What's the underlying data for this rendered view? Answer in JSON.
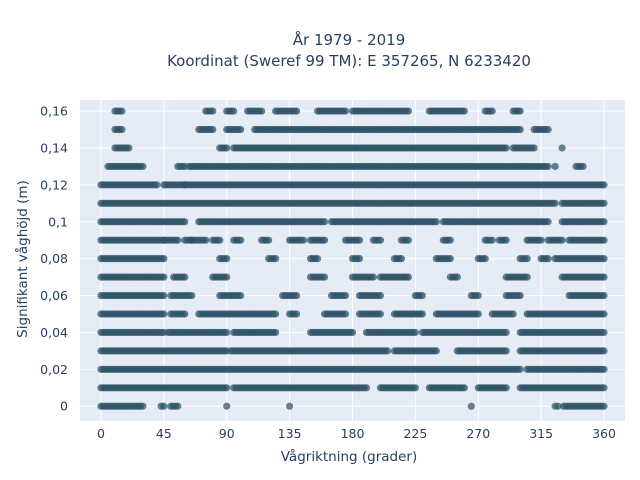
{
  "chart_data": {
    "type": "scatter",
    "title_line1": "År 1979 - 2019",
    "title_line2": "Koordinat (Sweref 99 TM): E 357265, N 6233420",
    "xlabel": "Vågriktning (grader)",
    "ylabel": "Signifikant våghöjd (m)",
    "xlim": [
      -15,
      375
    ],
    "ylim": [
      -0.008,
      0.166
    ],
    "x_ticks": [
      0,
      45,
      90,
      135,
      180,
      225,
      270,
      315,
      360
    ],
    "x_tick_labels": [
      "0",
      "45",
      "90",
      "135",
      "180",
      "225",
      "270",
      "315",
      "360"
    ],
    "y_ticks": [
      0,
      0.02,
      0.04,
      0.06,
      0.08,
      0.1,
      0.12,
      0.14,
      0.16
    ],
    "y_tick_labels": [
      "0",
      "0,02",
      "0,04",
      "0,06",
      "0,08",
      "0,1",
      "0,12",
      "0,14",
      "0,16"
    ],
    "grid": true,
    "plot_bg": "#e5ecf6",
    "marker_color": "#2e5266",
    "series": [
      {
        "bands": [
          {
            "y": 0.0,
            "x_ranges": [
              [
                0,
                30
              ],
              [
                43,
                45
              ],
              [
                50,
                55
              ],
              [
                90,
                90
              ],
              [
                135,
                135
              ],
              [
                265,
                265
              ],
              [
                325,
                327
              ],
              [
                331,
                360
              ]
            ]
          },
          {
            "y": 0.01,
            "x_ranges": [
              [
                0,
                90
              ],
              [
                95,
                190
              ],
              [
                200,
                225
              ],
              [
                235,
                260
              ],
              [
                270,
                290
              ],
              [
                300,
                360
              ]
            ]
          },
          {
            "y": 0.02,
            "x_ranges": [
              [
                0,
                300
              ],
              [
                305,
                360
              ]
            ]
          },
          {
            "y": 0.03,
            "x_ranges": [
              [
                0,
                90
              ],
              [
                93,
                205
              ],
              [
                210,
                240
              ],
              [
                255,
                290
              ],
              [
                300,
                360
              ]
            ]
          },
          {
            "y": 0.04,
            "x_ranges": [
              [
                0,
                45
              ],
              [
                48,
                90
              ],
              [
                95,
                125
              ],
              [
                150,
                180
              ],
              [
                190,
                225
              ],
              [
                230,
                290
              ],
              [
                300,
                360
              ]
            ]
          },
          {
            "y": 0.05,
            "x_ranges": [
              [
                0,
                45
              ],
              [
                50,
                60
              ],
              [
                70,
                125
              ],
              [
                135,
                140
              ],
              [
                160,
                175
              ],
              [
                185,
                200
              ],
              [
                210,
                230
              ],
              [
                240,
                270
              ],
              [
                280,
                295
              ],
              [
                305,
                360
              ]
            ]
          },
          {
            "y": 0.06,
            "x_ranges": [
              [
                0,
                45
              ],
              [
                50,
                65
              ],
              [
                85,
                100
              ],
              [
                130,
                140
              ],
              [
                165,
                175
              ],
              [
                185,
                200
              ],
              [
                225,
                230
              ],
              [
                265,
                270
              ],
              [
                290,
                300
              ],
              [
                335,
                360
              ]
            ]
          },
          {
            "y": 0.07,
            "x_ranges": [
              [
                0,
                45
              ],
              [
                52,
                60
              ],
              [
                80,
                90
              ],
              [
                150,
                160
              ],
              [
                180,
                195
              ],
              [
                200,
                220
              ],
              [
                250,
                255
              ],
              [
                290,
                305
              ],
              [
                330,
                360
              ]
            ]
          },
          {
            "y": 0.08,
            "x_ranges": [
              [
                0,
                45
              ],
              [
                85,
                90
              ],
              [
                120,
                125
              ],
              [
                150,
                155
              ],
              [
                180,
                185
              ],
              [
                210,
                215
              ],
              [
                240,
                250
              ],
              [
                270,
                275
              ],
              [
                300,
                305
              ],
              [
                315,
                320
              ],
              [
                325,
                360
              ]
            ]
          },
          {
            "y": 0.09,
            "x_ranges": [
              [
                0,
                45
              ],
              [
                45,
                55
              ],
              [
                60,
                65
              ],
              [
                65,
                75
              ],
              [
                80,
                85
              ],
              [
                95,
                100
              ],
              [
                115,
                120
              ],
              [
                135,
                145
              ],
              [
                150,
                160
              ],
              [
                175,
                185
              ],
              [
                195,
                200
              ],
              [
                215,
                220
              ],
              [
                245,
                250
              ],
              [
                275,
                280
              ],
              [
                285,
                290
              ],
              [
                305,
                315
              ],
              [
                320,
                330
              ],
              [
                335,
                360
              ]
            ]
          },
          {
            "y": 0.1,
            "x_ranges": [
              [
                0,
                60
              ],
              [
                70,
                160
              ],
              [
                165,
                240
              ],
              [
                245,
                320
              ],
              [
                330,
                360
              ]
            ]
          },
          {
            "y": 0.11,
            "x_ranges": [
              [
                0,
                325
              ],
              [
                330,
                360
              ]
            ]
          },
          {
            "y": 0.12,
            "x_ranges": [
              [
                0,
                40
              ],
              [
                45,
                60
              ],
              [
                60,
                360
              ]
            ]
          },
          {
            "y": 0.13,
            "x_ranges": [
              [
                5,
                30
              ],
              [
                55,
                60
              ],
              [
                63,
                320
              ],
              [
                325,
                325
              ],
              [
                340,
                345
              ]
            ]
          },
          {
            "y": 0.14,
            "x_ranges": [
              [
                10,
                20
              ],
              [
                85,
                90
              ],
              [
                95,
                290
              ],
              [
                295,
                310
              ],
              [
                330,
                330
              ]
            ]
          },
          {
            "y": 0.15,
            "x_ranges": [
              [
                10,
                15
              ],
              [
                70,
                80
              ],
              [
                90,
                100
              ],
              [
                110,
                300
              ],
              [
                310,
                320
              ]
            ]
          },
          {
            "y": 0.16,
            "x_ranges": [
              [
                10,
                15
              ],
              [
                75,
                80
              ],
              [
                90,
                95
              ],
              [
                105,
                115
              ],
              [
                125,
                140
              ],
              [
                155,
                175
              ],
              [
                180,
                220
              ],
              [
                235,
                260
              ],
              [
                275,
                280
              ],
              [
                295,
                300
              ]
            ]
          }
        ]
      }
    ]
  }
}
